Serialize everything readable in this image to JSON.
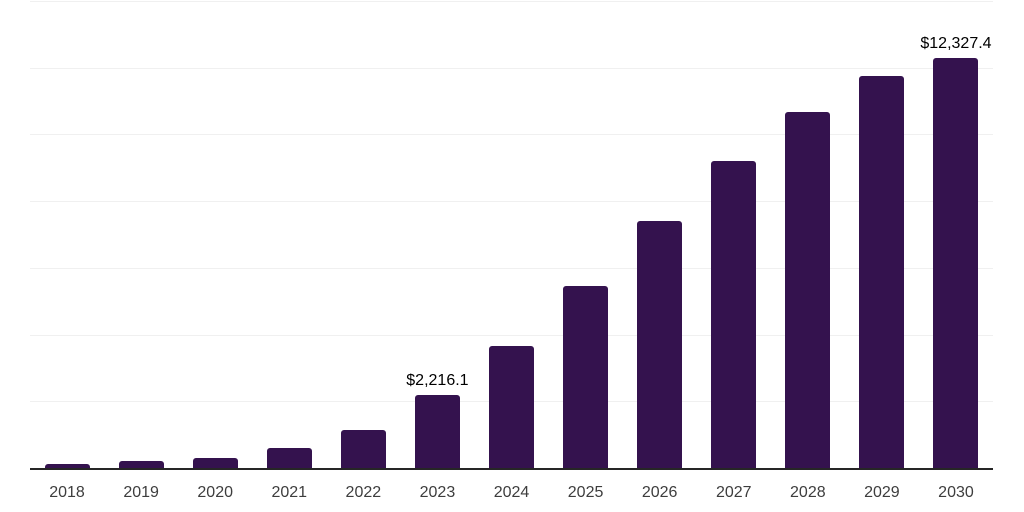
{
  "chart_data": {
    "type": "bar",
    "title": "",
    "xlabel": "",
    "ylabel": "",
    "categories": [
      "2018",
      "2019",
      "2020",
      "2021",
      "2022",
      "2023",
      "2024",
      "2025",
      "2026",
      "2027",
      "2028",
      "2029",
      "2030"
    ],
    "values": [
      150,
      250,
      320,
      620,
      1175,
      2216.1,
      3680,
      5480,
      7450,
      9240,
      10710,
      11780,
      12327.4
    ],
    "data_labels": [
      "",
      "",
      "",
      "",
      "",
      "$2,216.1",
      "",
      "",
      "",
      "",
      "",
      "",
      "$12,327.4"
    ],
    "ylim": [
      0,
      14000
    ],
    "gridline_values": [
      2000,
      4000,
      6000,
      8000,
      10000,
      12000,
      14000
    ],
    "grid": "horizontal-only",
    "legend": "none",
    "y_axis_tick_labels_visible": false,
    "colors": {
      "bar": "#34124E",
      "axis_line": "#262626",
      "gridline": "#f0f0f0",
      "tick_label": "#3d3d3d",
      "data_label": "#000000",
      "background": "#ffffff"
    }
  }
}
